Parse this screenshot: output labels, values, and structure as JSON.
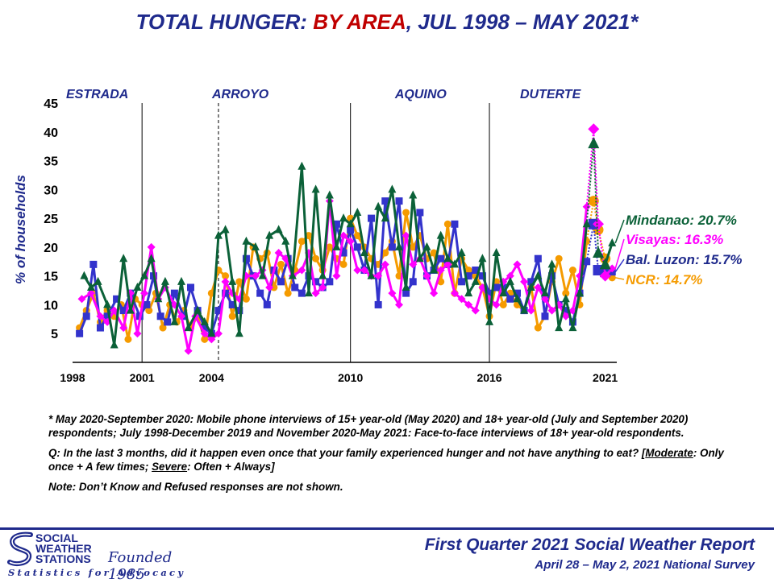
{
  "header": {
    "title_part1": "TOTAL HUNGER:",
    "title_part2": "BY AREA",
    "title_part3": ", JUL 1998 – MAY 2021*"
  },
  "chart_data": {
    "type": "line",
    "ylabel": "% of households",
    "ylim": [
      0,
      45
    ],
    "yticks": [
      5,
      10,
      15,
      20,
      25,
      30,
      35,
      40,
      45
    ],
    "xlim": [
      1998,
      2021.5
    ],
    "xticks": [
      1998,
      2001,
      2004,
      2010,
      2016,
      2021
    ],
    "vlines": [
      {
        "x": 2001,
        "style": "solid"
      },
      {
        "x": 2004.3,
        "style": "dashed"
      },
      {
        "x": 2010,
        "style": "solid"
      },
      {
        "x": 2016,
        "style": "solid"
      }
    ],
    "administrations": [
      {
        "name": "ESTRADA",
        "x": 1998
      },
      {
        "name": "ARROYO",
        "x": 2004.3
      },
      {
        "name": "AQUINO",
        "x": 2012.2
      },
      {
        "name": "DUTERTE",
        "x": 2017.6
      }
    ],
    "series": [
      {
        "name": "Mindanao",
        "color": "#0b6138",
        "marker": "triangle",
        "end_value": 20.7,
        "end_label": "Mindanao: 20.7%",
        "x": [
          1998.5,
          1998.8,
          1999.1,
          1999.5,
          1999.8,
          2000.2,
          2000.5,
          2000.8,
          2001.1,
          2001.4,
          2001.7,
          2002.0,
          2002.4,
          2002.7,
          2003.0,
          2003.4,
          2003.7,
          2004.0,
          2004.3,
          2004.6,
          2004.9,
          2005.2,
          2005.5,
          2005.9,
          2006.2,
          2006.5,
          2006.9,
          2007.2,
          2007.5,
          2007.9,
          2008.2,
          2008.5,
          2008.8,
          2009.1,
          2009.4,
          2009.7,
          2010.0,
          2010.3,
          2010.6,
          2010.9,
          2011.2,
          2011.5,
          2011.8,
          2012.1,
          2012.4,
          2012.7,
          2013.0,
          2013.3,
          2013.6,
          2013.9,
          2014.2,
          2014.5,
          2014.8,
          2015.1,
          2015.4,
          2015.7,
          2016.0,
          2016.3,
          2016.6,
          2016.9,
          2017.2,
          2017.5,
          2017.8,
          2018.1,
          2018.4,
          2018.7,
          2019.0,
          2019.3,
          2019.6,
          2019.9,
          2020.2,
          2020.5,
          2020.7,
          2021.0,
          2021.3
        ],
        "values": [
          15,
          13,
          14,
          10,
          3,
          18,
          9,
          13,
          15,
          18,
          11,
          14,
          7,
          14,
          6,
          9,
          7,
          5,
          22,
          23,
          14,
          5,
          21,
          20,
          15,
          22,
          23,
          21,
          15,
          34,
          12,
          30,
          15,
          29,
          20,
          25,
          24,
          26,
          19,
          15,
          27,
          25,
          30,
          20,
          13,
          29,
          18,
          20,
          16,
          22,
          18,
          17,
          19,
          12,
          14,
          18,
          7,
          19,
          12,
          14,
          11,
          9,
          13,
          15,
          12,
          17,
          6,
          11,
          6,
          12,
          24,
          38,
          19,
          17,
          20.7
        ]
      },
      {
        "name": "Visayas",
        "color": "#ff00ff",
        "marker": "diamond",
        "end_value": 16.3,
        "end_label": "Visayas: 16.3%",
        "x": [
          1998.4,
          1998.8,
          1999.2,
          1999.5,
          1999.8,
          2000.2,
          2000.5,
          2000.8,
          2001.1,
          2001.4,
          2001.7,
          2002.0,
          2002.4,
          2002.7,
          2003.0,
          2003.3,
          2003.7,
          2004.0,
          2004.3,
          2004.6,
          2004.9,
          2005.2,
          2005.5,
          2005.9,
          2006.2,
          2006.5,
          2006.9,
          2007.2,
          2007.5,
          2007.9,
          2008.2,
          2008.5,
          2008.8,
          2009.1,
          2009.4,
          2009.7,
          2010.0,
          2010.3,
          2010.6,
          2010.9,
          2011.2,
          2011.5,
          2011.8,
          2012.1,
          2012.4,
          2012.7,
          2013.0,
          2013.3,
          2013.6,
          2013.9,
          2014.2,
          2014.5,
          2014.8,
          2015.1,
          2015.4,
          2015.7,
          2016.0,
          2016.3,
          2016.6,
          2016.9,
          2017.2,
          2017.5,
          2017.8,
          2018.1,
          2018.4,
          2018.7,
          2019.0,
          2019.3,
          2019.6,
          2019.9,
          2020.2,
          2020.5,
          2020.7,
          2021.0,
          2021.3
        ],
        "values": [
          11,
          12,
          8,
          7,
          9,
          6,
          12,
          5,
          12,
          20,
          11,
          13,
          10,
          8,
          2,
          8,
          5,
          4,
          5,
          14,
          12,
          11,
          15,
          15,
          16,
          13,
          19,
          18,
          15,
          16,
          19,
          12,
          13,
          28,
          15,
          22,
          21,
          16,
          16,
          15,
          15,
          17,
          12,
          10,
          22,
          17,
          18,
          15,
          12,
          16,
          17,
          12,
          11,
          10,
          9,
          13,
          11,
          10,
          14,
          15,
          17,
          14,
          9,
          13,
          11,
          9,
          10,
          8,
          9,
          15,
          27,
          40.5,
          24,
          15,
          16.3
        ]
      },
      {
        "name": "Bal. Luzon",
        "color": "#3333cc",
        "marker": "square",
        "end_value": 15.7,
        "end_label": "Bal. Luzon: 15.7%",
        "x": [
          1998.3,
          1998.6,
          1998.9,
          1999.2,
          1999.5,
          1999.9,
          2000.2,
          2000.5,
          2000.9,
          2001.2,
          2001.5,
          2001.8,
          2002.1,
          2002.4,
          2002.8,
          2003.1,
          2003.4,
          2003.7,
          2004.0,
          2004.3,
          2004.6,
          2004.9,
          2005.2,
          2005.5,
          2005.8,
          2006.1,
          2006.4,
          2006.7,
          2007.0,
          2007.3,
          2007.6,
          2007.9,
          2008.2,
          2008.5,
          2008.8,
          2009.1,
          2009.4,
          2009.7,
          2010.0,
          2010.3,
          2010.6,
          2010.9,
          2011.2,
          2011.5,
          2011.8,
          2012.1,
          2012.4,
          2012.7,
          2013.0,
          2013.3,
          2013.6,
          2013.9,
          2014.2,
          2014.5,
          2014.8,
          2015.1,
          2015.4,
          2015.7,
          2016.0,
          2016.3,
          2016.6,
          2016.9,
          2017.2,
          2017.5,
          2017.8,
          2018.1,
          2018.4,
          2018.7,
          2019.0,
          2019.3,
          2019.6,
          2019.9,
          2020.2,
          2020.5,
          2020.7,
          2021.0,
          2021.3
        ],
        "values": [
          5,
          8,
          17,
          6,
          8,
          11,
          9,
          12,
          8,
          10,
          15,
          8,
          7,
          12,
          8,
          13,
          9,
          6,
          5,
          9,
          12,
          10,
          9,
          18,
          15,
          12,
          10,
          16,
          14,
          18,
          13,
          12,
          15,
          14,
          13,
          14,
          24,
          19,
          23,
          20,
          16,
          25,
          10,
          28,
          20,
          28,
          12,
          14,
          26,
          15,
          16,
          18,
          17,
          24,
          14,
          15,
          16,
          15,
          12,
          13,
          13,
          11,
          12,
          9,
          14,
          18,
          8,
          15,
          10,
          9,
          7,
          12,
          17.5,
          24,
          16,
          15.7,
          15.7
        ]
      },
      {
        "name": "NCR",
        "color": "#f59b00",
        "marker": "circle",
        "end_value": 14.7,
        "end_label": "NCR: 14.7%",
        "x": [
          1998.3,
          1998.6,
          1998.9,
          1999.2,
          1999.5,
          1999.8,
          2000.1,
          2000.4,
          2000.7,
          2001.0,
          2001.3,
          2001.6,
          2001.9,
          2002.2,
          2002.5,
          2002.8,
          2003.1,
          2003.4,
          2003.7,
          2004.0,
          2004.3,
          2004.6,
          2004.9,
          2005.2,
          2005.5,
          2005.8,
          2006.1,
          2006.4,
          2006.7,
          2007.0,
          2007.3,
          2007.6,
          2007.9,
          2008.2,
          2008.5,
          2008.8,
          2009.1,
          2009.4,
          2009.7,
          2010.0,
          2010.3,
          2010.6,
          2010.9,
          2011.2,
          2011.5,
          2011.8,
          2012.1,
          2012.4,
          2012.7,
          2013.0,
          2013.3,
          2013.6,
          2013.9,
          2014.2,
          2014.5,
          2014.8,
          2015.1,
          2015.4,
          2015.7,
          2016.0,
          2016.3,
          2016.6,
          2016.9,
          2017.2,
          2017.5,
          2017.8,
          2018.1,
          2018.4,
          2018.7,
          2019.0,
          2019.3,
          2019.6,
          2019.9,
          2020.2,
          2020.5,
          2020.7,
          2021.0,
          2021.3
        ],
        "values": [
          6,
          9,
          12,
          7,
          9,
          8,
          10,
          4,
          11,
          10,
          9,
          12,
          6,
          10,
          7,
          9,
          6,
          8,
          4,
          12,
          16,
          15,
          8,
          14,
          11,
          20,
          18,
          19,
          13,
          17,
          12,
          16,
          21,
          22,
          18,
          16,
          20,
          18,
          17,
          25,
          22,
          20,
          18,
          17,
          19,
          21,
          15,
          26,
          20,
          22,
          18,
          19,
          14,
          24,
          12,
          18,
          16,
          15,
          13,
          8,
          14,
          10,
          12,
          10,
          9,
          13,
          6,
          8,
          14,
          18,
          12,
          16,
          10,
          21,
          28,
          23,
          18,
          14.7
        ]
      }
    ]
  },
  "notes": {
    "note1": "* May 2020-September 2020: Mobile phone interviews of 15+ year-old (May 2020) and 18+ year-old (July and September 2020) respondents; July 1998-December 2019 and November 2020-May 2021: Face-to-face interviews of 18+ year-old respondents.",
    "q_prefix": "Q: In the last 3 months, did it happen even once that your family experienced hunger and not have anything to eat? [",
    "q_moderate": "Moderate",
    "q_mid": ": Only once + A few times; ",
    "q_severe": "Severe",
    "q_suffix": ": Often + Always]",
    "note3": "Note: Don’t Know and Refused responses are not shown."
  },
  "footer": {
    "logo_line1": "SOCIAL",
    "logo_line2": "WEATHER",
    "logo_line3": "STATIONS",
    "founded": "Founded 1985",
    "slogan": "Statistics for Advocacy",
    "report_title": "First Quarter 2021 Social Weather Report",
    "report_dates": "April 28 – May 2, 2021 National Survey"
  }
}
